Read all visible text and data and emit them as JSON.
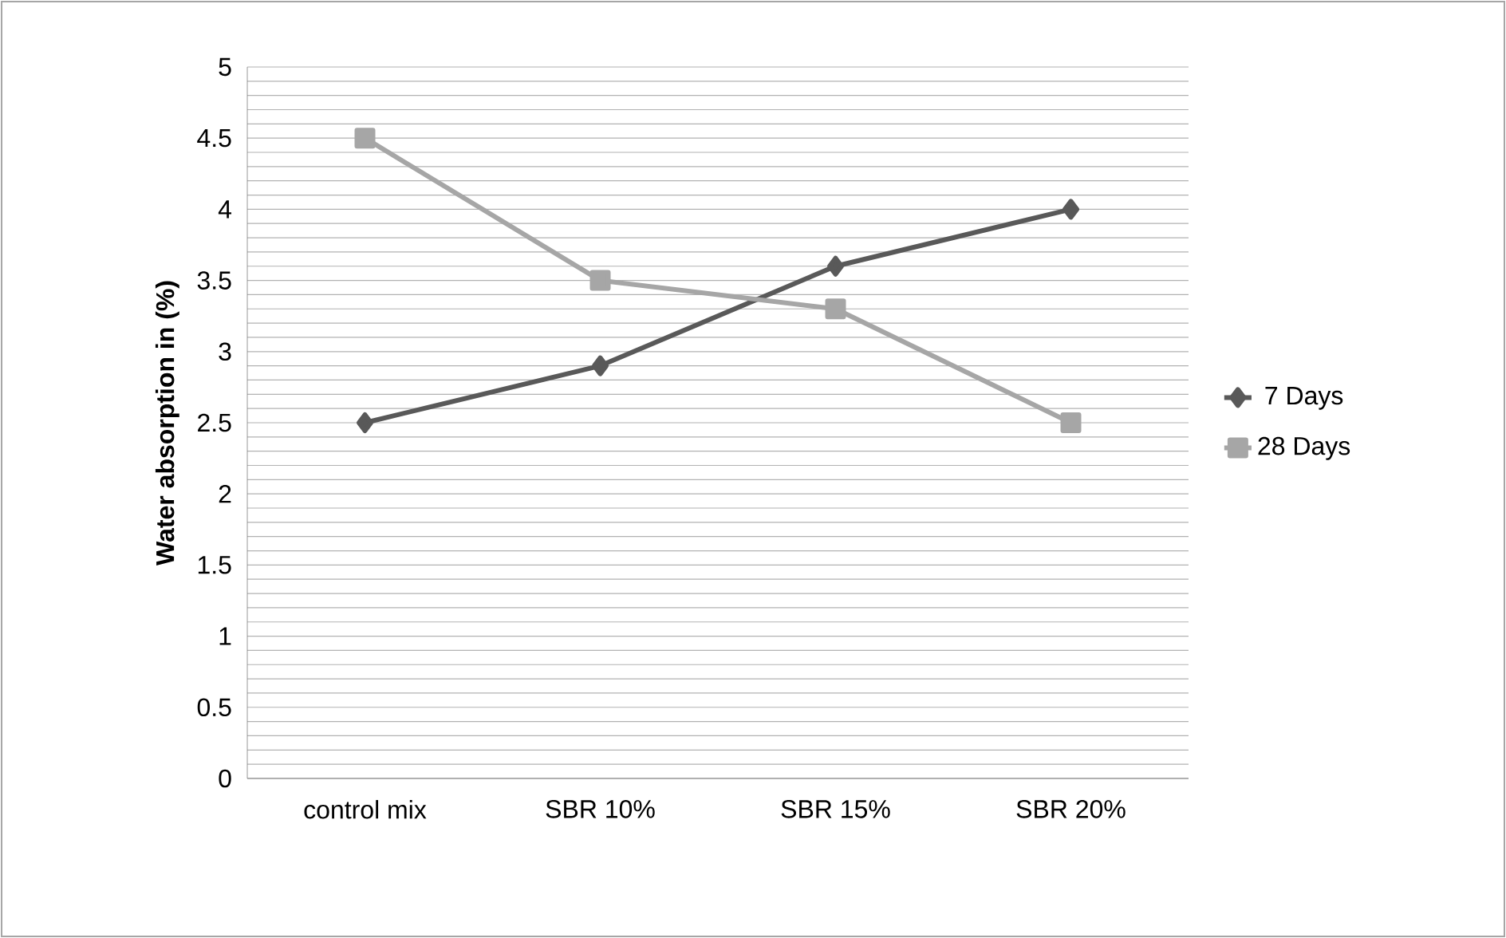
{
  "chart_data": {
    "type": "line",
    "ylabel": "Water  absorption in (%)",
    "categories": [
      "control mix",
      "SBR 10%",
      "SBR 15%",
      "SBR 20%"
    ],
    "series": [
      {
        "name": "7 Days",
        "color": "#595959",
        "marker": "diamond",
        "values": [
          2.5,
          2.9,
          3.6,
          4.0
        ]
      },
      {
        "name": "28 Days",
        "color": "#a6a6a6",
        "marker": "square",
        "values": [
          4.5,
          3.5,
          3.3,
          2.5
        ]
      }
    ],
    "ylim": [
      0,
      5
    ],
    "yticks": [
      0,
      0.5,
      1,
      1.5,
      2,
      2.5,
      3,
      3.5,
      4,
      4.5,
      5
    ],
    "grid": "y",
    "legend": "right",
    "line_style": "solid"
  }
}
